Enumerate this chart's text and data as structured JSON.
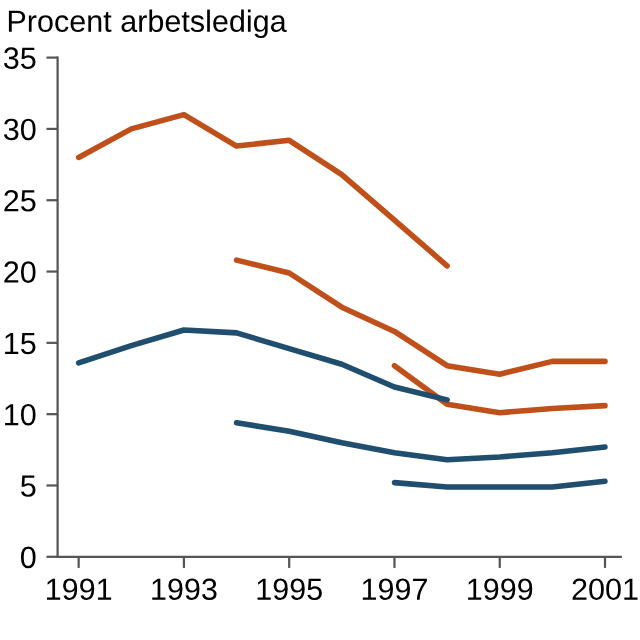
{
  "chart_data": {
    "type": "line",
    "ylabel": "Procent arbetslediga",
    "xlim": [
      1990.6,
      2001.3
    ],
    "xticks": [
      1991,
      1993,
      1995,
      1997,
      1999,
      2001
    ],
    "ylim": [
      0,
      35
    ],
    "yticks": [
      0,
      5,
      10,
      15,
      20,
      25,
      30,
      35
    ],
    "grid": false,
    "marker": "none",
    "line_style": "solid",
    "series": [
      {
        "color": "#c0501a",
        "x": [
          1991,
          1992,
          1993,
          1994,
          1995,
          1996,
          1997,
          1998
        ],
        "values": [
          28,
          30,
          31,
          28.8,
          29.2,
          26.8,
          23.6,
          20.4
        ]
      },
      {
        "color": "#c0501a",
        "x": [
          1994,
          1995,
          1996,
          1997,
          1998,
          1999,
          2000,
          2001
        ],
        "values": [
          20.8,
          19.9,
          17.5,
          15.8,
          13.4,
          12.8,
          13.7,
          13.7
        ]
      },
      {
        "color": "#c0501a",
        "x": [
          1997,
          1998,
          1999,
          2000,
          2001
        ],
        "values": [
          13.4,
          10.7,
          10.1,
          10.4,
          10.6
        ]
      },
      {
        "color": "#1f4e6e",
        "x": [
          1991,
          1992,
          1993,
          1994,
          1995,
          1996,
          1997,
          1998
        ],
        "values": [
          13.6,
          14.8,
          15.9,
          15.7,
          14.6,
          13.5,
          11.9,
          11.0
        ]
      },
      {
        "color": "#1f4e6e",
        "x": [
          1994,
          1995,
          1996,
          1997,
          1998,
          1999,
          2000,
          2001
        ],
        "values": [
          9.4,
          8.8,
          8.0,
          7.3,
          6.8,
          7.0,
          7.3,
          7.7
        ]
      },
      {
        "color": "#1f4e6e",
        "x": [
          1997,
          1998,
          1999,
          2000,
          2001
        ],
        "values": [
          5.2,
          4.9,
          4.9,
          4.9,
          5.3
        ]
      }
    ]
  }
}
